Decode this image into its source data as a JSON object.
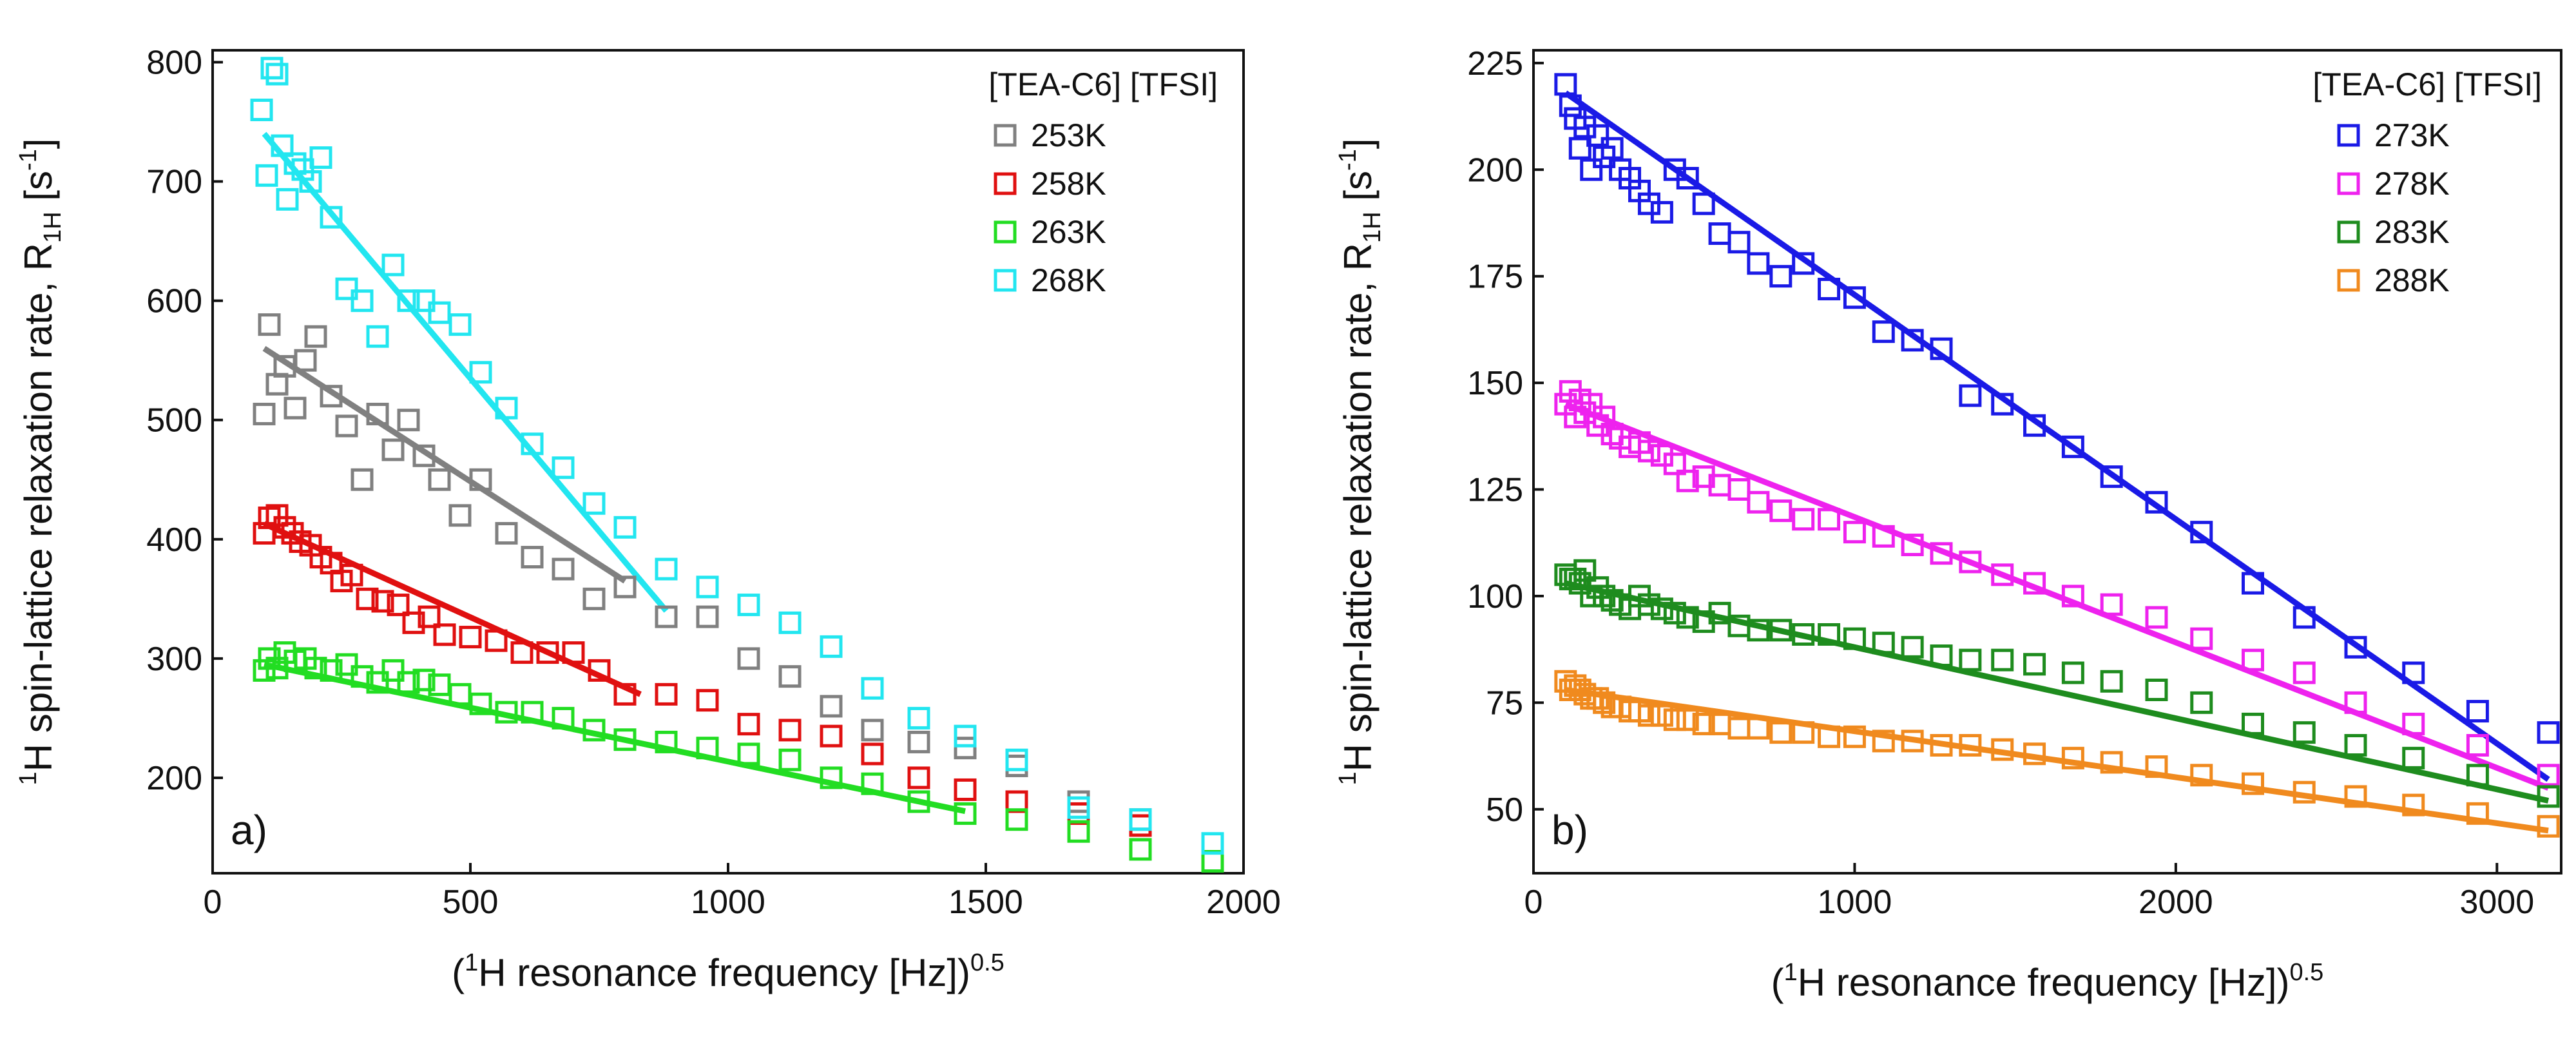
{
  "chart_data": [
    {
      "type": "scatter",
      "panel_label": "a)",
      "xlabel": {
        "pre": "(",
        "sup1": "1",
        "main": "H resonance frequency [Hz])",
        "sup2": "0.5"
      },
      "ylabel": {
        "sup1": "1",
        "main": "H spin-lattice relaxation rate, R",
        "sub": "1H",
        "unit_open": " [s",
        "sup2": "-1",
        "unit_close": "]"
      },
      "xlim": [
        0,
        2000
      ],
      "ylim": [
        120,
        810
      ],
      "xticks": [
        0,
        500,
        1000,
        1500,
        2000
      ],
      "yticks": [
        200,
        300,
        400,
        500,
        600,
        700,
        800
      ],
      "legend_title": "[TEA-C6] [TFSI]",
      "legend_position": "top-right",
      "series": [
        {
          "name": "253K",
          "color": "#808080",
          "x": [
            100,
            110,
            125,
            140,
            160,
            180,
            200,
            230,
            260,
            290,
            320,
            350,
            380,
            410,
            440,
            480,
            520,
            570,
            620,
            680,
            740,
            800,
            880,
            960,
            1040,
            1120,
            1200,
            1280,
            1370,
            1460,
            1560,
            1680,
            1800
          ],
          "y": [
            505,
            580,
            530,
            545,
            510,
            550,
            570,
            520,
            495,
            450,
            505,
            475,
            500,
            470,
            450,
            420,
            450,
            405,
            385,
            375,
            350,
            360,
            335,
            335,
            300,
            285,
            260,
            240,
            230,
            225,
            210,
            180,
            165
          ],
          "fit": {
            "x": [
              100,
              800
            ],
            "y": [
              560,
              365
            ]
          }
        },
        {
          "name": "258K",
          "color": "#e01010",
          "x": [
            100,
            110,
            125,
            140,
            155,
            170,
            190,
            210,
            230,
            250,
            270,
            300,
            330,
            360,
            390,
            420,
            450,
            500,
            550,
            600,
            650,
            700,
            750,
            800,
            880,
            960,
            1040,
            1120,
            1200,
            1280,
            1370,
            1460,
            1560,
            1680,
            1800
          ],
          "y": [
            405,
            418,
            420,
            410,
            405,
            398,
            395,
            385,
            380,
            365,
            370,
            350,
            348,
            345,
            330,
            335,
            320,
            318,
            315,
            305,
            305,
            305,
            290,
            270,
            270,
            265,
            245,
            240,
            235,
            220,
            200,
            190,
            180,
            170,
            160
          ],
          "fit": {
            "x": [
              100,
              830
            ],
            "y": [
              413,
              270
            ]
          }
        },
        {
          "name": "263K",
          "color": "#22dd22",
          "x": [
            100,
            110,
            125,
            140,
            160,
            180,
            200,
            230,
            260,
            290,
            320,
            350,
            380,
            410,
            440,
            480,
            520,
            570,
            620,
            680,
            740,
            800,
            880,
            960,
            1040,
            1120,
            1200,
            1280,
            1370,
            1460,
            1560,
            1680,
            1800,
            1940
          ],
          "y": [
            290,
            300,
            292,
            305,
            298,
            300,
            292,
            290,
            295,
            285,
            280,
            290,
            280,
            282,
            278,
            270,
            262,
            255,
            255,
            250,
            240,
            232,
            230,
            225,
            220,
            215,
            200,
            195,
            180,
            170,
            165,
            155,
            140,
            130
          ],
          "fit": {
            "x": [
              100,
              1460
            ],
            "y": [
              295,
              172
            ]
          }
        },
        {
          "name": "268K",
          "color": "#22e6f0",
          "x": [
            95,
            105,
            115,
            125,
            135,
            145,
            160,
            175,
            190,
            210,
            230,
            260,
            290,
            320,
            350,
            380,
            410,
            440,
            480,
            520,
            570,
            620,
            680,
            740,
            800,
            880,
            960,
            1040,
            1120,
            1200,
            1280,
            1370,
            1460,
            1560,
            1680,
            1800,
            1940
          ],
          "y": [
            760,
            705,
            795,
            790,
            730,
            685,
            715,
            710,
            700,
            720,
            670,
            610,
            600,
            570,
            630,
            600,
            600,
            590,
            580,
            540,
            510,
            480,
            460,
            430,
            410,
            375,
            360,
            345,
            330,
            310,
            275,
            250,
            235,
            215,
            175,
            165,
            145
          ],
          "fit": {
            "x": [
              100,
              880
            ],
            "y": [
              740,
              340
            ]
          }
        }
      ]
    },
    {
      "type": "scatter",
      "panel_label": "b)",
      "xlabel": {
        "pre": "(",
        "sup1": "1",
        "main": "H resonance frequency [Hz])",
        "sup2": "0.5"
      },
      "ylabel": {
        "sup1": "1",
        "main": "H spin-lattice relaxation rate, R",
        "sub": "1H",
        "unit_open": " [s",
        "sup2": "-1",
        "unit_close": "]"
      },
      "xlim": [
        0,
        3200
      ],
      "ylim": [
        35,
        228
      ],
      "xticks": [
        0,
        1000,
        2000,
        3000
      ],
      "yticks": [
        50,
        75,
        100,
        125,
        150,
        175,
        200,
        225
      ],
      "legend_title": "[TEA-C6] [TFSI]",
      "legend_position": "top-right",
      "series": [
        {
          "name": "273K",
          "color": "#1a1ae6",
          "x": [
            100,
            115,
            130,
            145,
            160,
            180,
            200,
            220,
            245,
            270,
            300,
            330,
            360,
            400,
            440,
            480,
            530,
            580,
            640,
            700,
            770,
            840,
            920,
            1000,
            1090,
            1180,
            1270,
            1360,
            1460,
            1560,
            1680,
            1800,
            1940,
            2080,
            2240,
            2400,
            2560,
            2740,
            2940,
            3160
          ],
          "y": [
            220,
            215,
            212,
            205,
            210,
            200,
            208,
            203,
            205,
            200,
            198,
            195,
            192,
            190,
            200,
            198,
            192,
            185,
            183,
            178,
            175,
            178,
            172,
            170,
            162,
            160,
            158,
            147,
            145,
            140,
            135,
            128,
            122,
            115,
            103,
            95,
            88,
            82,
            73,
            68
          ],
          "fit": {
            "x": [
              100,
              3160
            ],
            "y": [
              218,
              57
            ]
          }
        },
        {
          "name": "278K",
          "color": "#ee22ee",
          "x": [
            100,
            115,
            130,
            145,
            160,
            180,
            200,
            220,
            245,
            270,
            300,
            330,
            360,
            400,
            440,
            480,
            530,
            580,
            640,
            700,
            770,
            840,
            920,
            1000,
            1090,
            1180,
            1270,
            1360,
            1460,
            1560,
            1680,
            1800,
            1940,
            2080,
            2240,
            2400,
            2560,
            2740,
            2940,
            3160
          ],
          "y": [
            145,
            148,
            142,
            146,
            143,
            145,
            140,
            142,
            138,
            137,
            135,
            136,
            134,
            133,
            131,
            127,
            128,
            126,
            125,
            122,
            120,
            118,
            118,
            115,
            114,
            112,
            110,
            108,
            105,
            103,
            100,
            98,
            95,
            90,
            85,
            82,
            75,
            70,
            65,
            58
          ],
          "fit": {
            "x": [
              100,
              3160
            ],
            "y": [
              145,
              55
            ]
          }
        },
        {
          "name": "283K",
          "color": "#1e8c1e",
          "x": [
            100,
            115,
            130,
            145,
            160,
            180,
            200,
            220,
            245,
            270,
            300,
            330,
            360,
            400,
            440,
            480,
            530,
            580,
            640,
            700,
            770,
            840,
            920,
            1000,
            1090,
            1180,
            1270,
            1360,
            1460,
            1560,
            1680,
            1800,
            1940,
            2080,
            2240,
            2400,
            2560,
            2740,
            2940,
            3160
          ],
          "y": [
            105,
            104,
            104,
            103,
            106,
            100,
            102,
            100,
            99,
            98,
            97,
            100,
            98,
            97,
            96,
            95,
            94,
            96,
            93,
            92,
            92,
            91,
            91,
            90,
            89,
            88,
            86,
            85,
            85,
            84,
            82,
            80,
            78,
            75,
            70,
            68,
            65,
            62,
            58,
            53
          ],
          "fit": {
            "x": [
              100,
              3160
            ],
            "y": [
              103,
              52
            ]
          }
        },
        {
          "name": "288K",
          "color": "#f08a1e",
          "x": [
            100,
            115,
            130,
            145,
            160,
            180,
            200,
            220,
            245,
            270,
            300,
            330,
            360,
            400,
            440,
            480,
            530,
            580,
            640,
            700,
            770,
            840,
            920,
            1000,
            1090,
            1180,
            1270,
            1360,
            1460,
            1560,
            1680,
            1800,
            1940,
            2080,
            2240,
            2400,
            2560,
            2740,
            2940,
            3160
          ],
          "y": [
            80,
            78,
            79,
            78,
            77,
            76,
            76,
            75,
            74,
            74,
            73,
            73,
            72,
            72,
            71,
            71,
            70,
            70,
            69,
            69,
            68,
            68,
            67,
            67,
            66,
            66,
            65,
            65,
            64,
            63,
            62,
            61,
            60,
            58,
            56,
            54,
            53,
            51,
            49,
            46
          ],
          "fit": {
            "x": [
              100,
              3160
            ],
            "y": [
              78,
              45
            ]
          }
        }
      ]
    }
  ]
}
